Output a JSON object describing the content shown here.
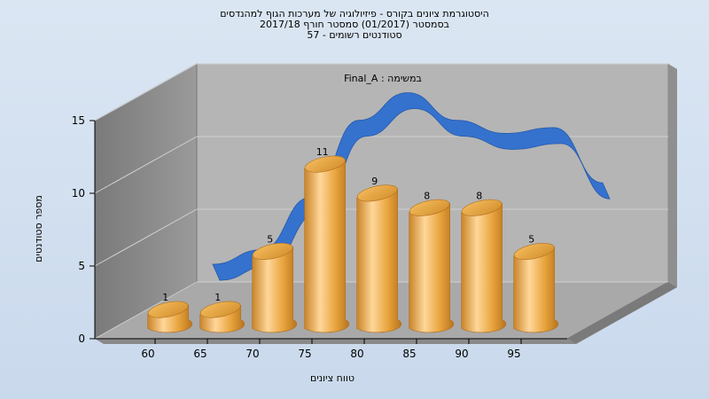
{
  "chart": {
    "title_line1": "היסטוגרמת ציונים בקורס - פיזיולוגיה של מערכות הגוף למהנדסים",
    "title_line2": "בסמסטר  (01/2017)  סמסטר חורף  2017/18",
    "title_line3": "סטודנטים רשומים - 57",
    "inner_label": "במשימה : Final_A",
    "xlabel": "טווח ציונים",
    "ylabel": "מספר סטודנטים"
  },
  "colors": {
    "bar": "#e8a33c",
    "curve": "#2f6fd0",
    "back_wall": "#b3b3b3",
    "side_wall": "#8c8c8c",
    "floor": "#a6a6a6"
  },
  "chart_data": {
    "type": "bar",
    "categories": [
      "60",
      "65",
      "70",
      "75",
      "80",
      "85",
      "90",
      "95"
    ],
    "values": [
      1,
      1,
      5,
      11,
      9,
      8,
      8,
      5
    ],
    "curve_values": [
      1.4,
      2.4,
      6.0,
      11.3,
      13.2,
      11.3,
      10.4,
      10.8,
      7.0
    ],
    "ylim": [
      0,
      15
    ],
    "yticks": [
      0,
      5,
      10,
      15
    ],
    "title": "היסטוגרמת ציונים בקורס - פיזיולוגיה של מערכות הגוף למהנדסים",
    "xlabel": "טווח ציונים",
    "ylabel": "מספר סטודנטים",
    "grid": true
  }
}
